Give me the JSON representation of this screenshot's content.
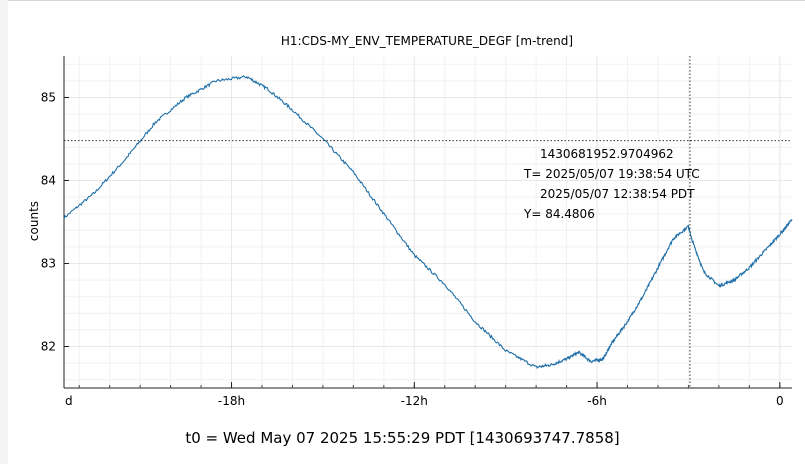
{
  "footer": {
    "t0_label": "t0 = Wed May 07 2025 15:55:29 PDT [1430693747.7858]"
  },
  "colors": {
    "series": "#1f6fa8",
    "grid": "#e8e8e8",
    "cursor": "#333333"
  },
  "chart_data": {
    "type": "line",
    "title": "H1:CDS-MY_ENV_TEMPERATURE_DEGF [m-trend]",
    "xlabel": "",
    "ylabel": "counts",
    "xlim": [
      -23.5,
      0.4
    ],
    "ylim": [
      81.5,
      85.5
    ],
    "grid": true,
    "x_ticks": [
      {
        "value": -24,
        "label": "d"
      },
      {
        "value": -18,
        "label": "-18h"
      },
      {
        "value": -12,
        "label": "-12h"
      },
      {
        "value": -6,
        "label": "-6h"
      },
      {
        "value": 0,
        "label": "0"
      }
    ],
    "y_ticks": [
      {
        "value": 82,
        "label": "82"
      },
      {
        "value": 83,
        "label": "83"
      },
      {
        "value": 84,
        "label": "84"
      },
      {
        "value": 85,
        "label": "85"
      }
    ],
    "series": [
      {
        "name": "",
        "x": [
          -23.5,
          -22.5,
          -21.5,
          -20.5,
          -19.5,
          -18.5,
          -17.5,
          -16.8,
          -16.0,
          -15.0,
          -14.0,
          -13.0,
          -12.0,
          -11.0,
          -10.0,
          -9.0,
          -8.0,
          -7.5,
          -7.0,
          -6.6,
          -6.2,
          -5.8,
          -5.5,
          -5.0,
          -4.5,
          -4.0,
          -3.5,
          -3.0,
          -2.9,
          -2.5,
          -2.0,
          -1.5,
          -1.0,
          -0.5,
          0.0,
          0.4
        ],
        "y": [
          83.55,
          83.85,
          84.25,
          84.7,
          85.0,
          85.2,
          85.25,
          85.1,
          84.85,
          84.5,
          84.1,
          83.6,
          83.1,
          82.75,
          82.3,
          81.95,
          81.75,
          81.78,
          81.85,
          81.93,
          81.82,
          81.85,
          82.05,
          82.3,
          82.6,
          82.95,
          83.3,
          83.45,
          83.3,
          82.9,
          82.73,
          82.8,
          82.95,
          83.15,
          83.35,
          83.53
        ]
      }
    ],
    "cursor": {
      "x": -2.95,
      "y": 84.4806,
      "labels": [
        "1430681952.9704962",
        "T= 2025/05/07 19:38:54 UTC",
        "2025/05/07 12:38:54 PDT",
        "Y= 84.4806"
      ]
    }
  }
}
